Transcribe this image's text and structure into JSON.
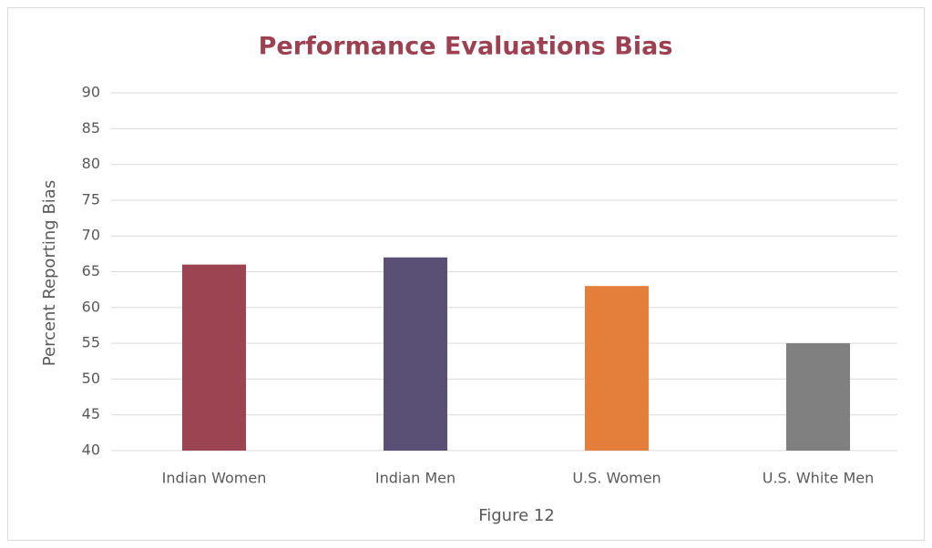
{
  "chart_data": {
    "type": "bar",
    "title": "Performance Evaluations Bias",
    "x_label": "Figure 12",
    "y_label": "Percent Reporting Bias",
    "categories": [
      "Indian Women",
      "Indian Men",
      "U.S. Women",
      "U.S. White Men"
    ],
    "values": [
      66,
      67,
      63,
      55
    ],
    "colors": [
      "#9c4452",
      "#5a5075",
      "#e37f3b",
      "#808080"
    ],
    "title_color": "#9c4152",
    "ylim": [
      40,
      90
    ],
    "yticks": [
      40,
      45,
      50,
      55,
      60,
      65,
      70,
      75,
      80,
      85,
      90
    ],
    "grid": true
  }
}
